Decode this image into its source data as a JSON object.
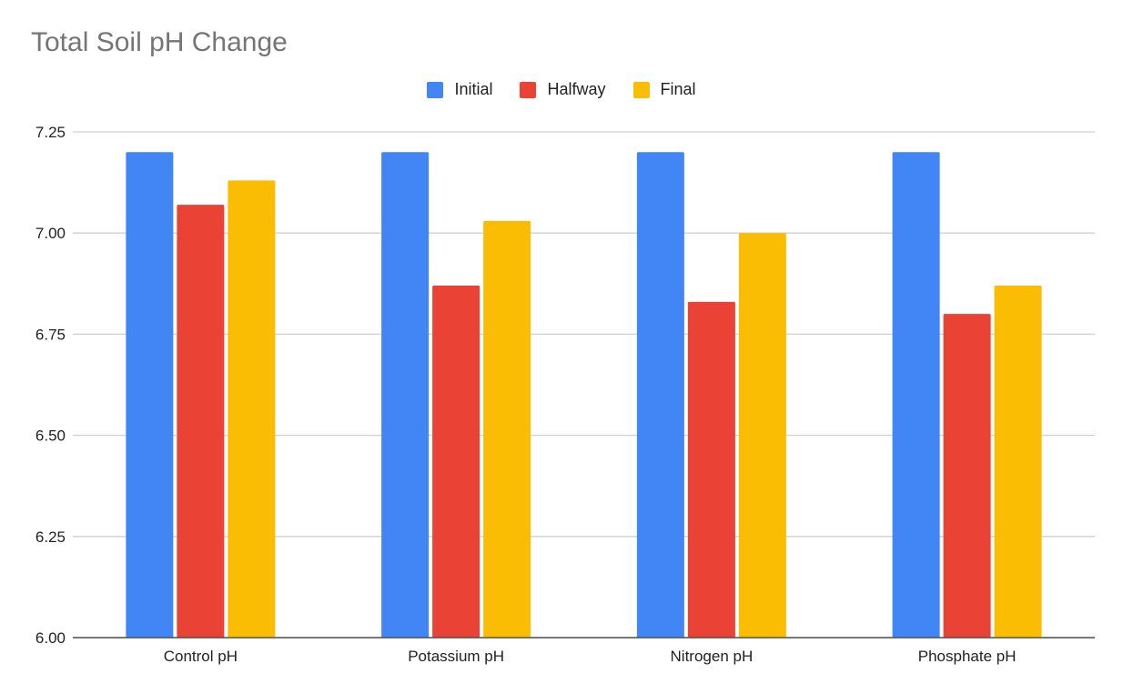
{
  "chart_data": {
    "type": "bar",
    "title": "Total Soil pH Change",
    "xlabel": "",
    "ylabel": "",
    "categories": [
      "Control pH",
      "Potassium pH",
      "Nitrogen pH",
      "Phosphate pH"
    ],
    "series": [
      {
        "name": "Initial",
        "color": "#4285F4",
        "values": [
          7.2,
          7.2,
          7.2,
          7.2
        ]
      },
      {
        "name": "Halfway",
        "color": "#EA4335",
        "values": [
          7.07,
          6.87,
          6.83,
          6.8
        ]
      },
      {
        "name": "Final",
        "color": "#FBBC04",
        "values": [
          7.13,
          7.03,
          7.0,
          6.87
        ]
      }
    ],
    "ylim": [
      6.0,
      7.25
    ],
    "yticks": [
      "6.00",
      "6.25",
      "6.50",
      "6.75",
      "7.00",
      "7.25"
    ],
    "grid": true,
    "legend_position": "top"
  }
}
